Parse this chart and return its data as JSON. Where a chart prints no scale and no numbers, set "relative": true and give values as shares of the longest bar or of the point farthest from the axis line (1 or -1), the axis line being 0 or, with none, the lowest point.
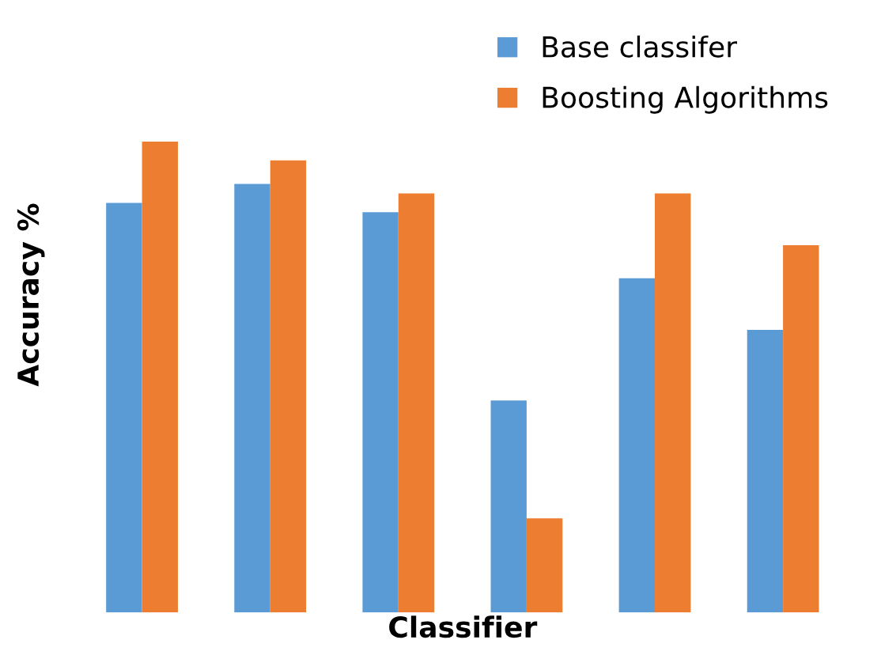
{
  "chart_data": {
    "type": "bar",
    "relative": true,
    "xlabel": "Classifier",
    "ylabel": "Accuracy %",
    "categories": [
      null,
      null,
      null,
      null,
      null,
      null
    ],
    "series": [
      {
        "name": "Base classifer",
        "color": "#5b9bd5",
        "values": [
          0.87,
          0.91,
          0.85,
          0.45,
          0.71,
          0.6
        ]
      },
      {
        "name": "Boosting Algorithms",
        "color": "#ed7d31",
        "values": [
          1.0,
          0.96,
          0.89,
          0.2,
          0.89,
          0.78
        ]
      }
    ],
    "legend": "top right",
    "grid": false
  }
}
